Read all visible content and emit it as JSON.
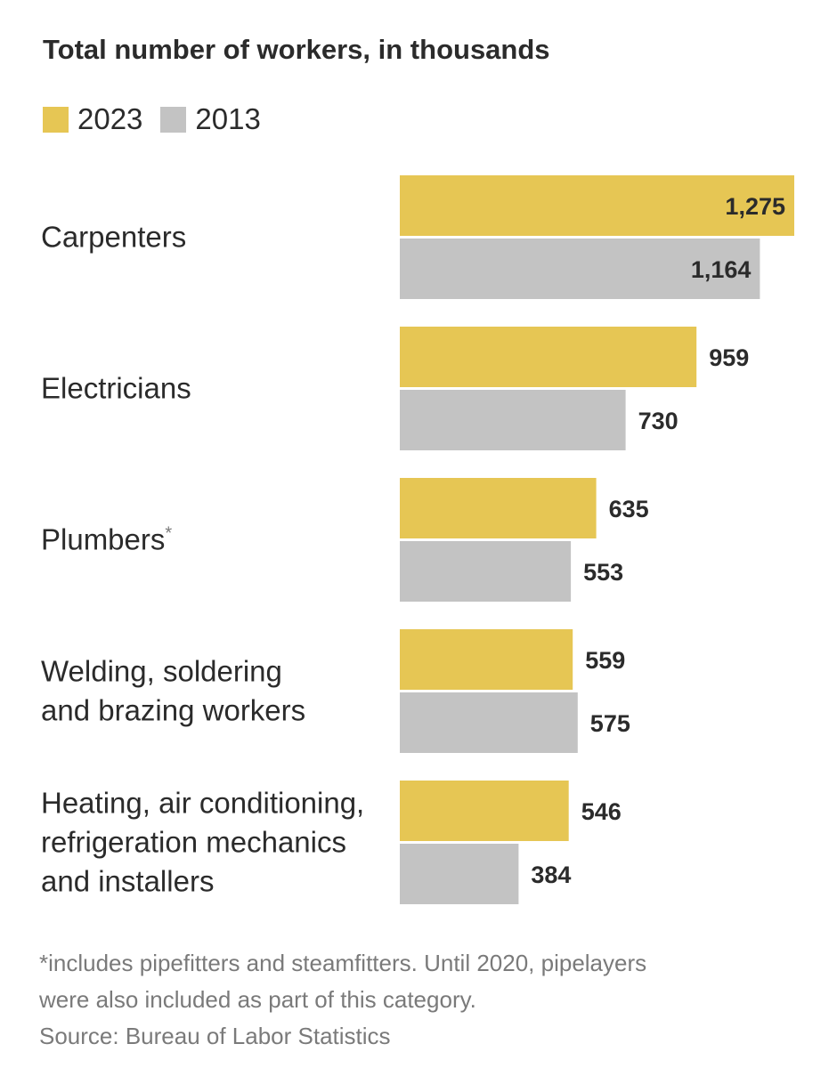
{
  "chart_data": {
    "type": "bar",
    "orientation": "horizontal",
    "title": "Total number of workers, in thousands",
    "categories": [
      [
        "Carpenters"
      ],
      [
        "Electricians"
      ],
      [
        "Plumbers*"
      ],
      [
        "Welding, soldering",
        "and brazing workers"
      ],
      [
        "Heating, air conditioning,",
        "refrigeration mechanics",
        "and installers"
      ]
    ],
    "series": [
      {
        "name": "2023",
        "color": "#e6c654",
        "values": [
          1275,
          959,
          635,
          559,
          546
        ]
      },
      {
        "name": "2013",
        "color": "#c3c3c3",
        "values": [
          1164,
          730,
          553,
          575,
          384
        ]
      }
    ],
    "value_labels": [
      [
        "1,275",
        "959",
        "635",
        "559",
        "546"
      ],
      [
        "1,164",
        "730",
        "553",
        "575",
        "384"
      ]
    ],
    "xlim": [
      0,
      1275
    ],
    "grid": false,
    "legend_position": "top-left"
  },
  "footnotes": {
    "line1": "*includes pipefitters and steamfitters. Until 2020, pipelayers",
    "line2": "were also included as part of this category.",
    "source": "Source: Bureau of Labor Statistics"
  }
}
